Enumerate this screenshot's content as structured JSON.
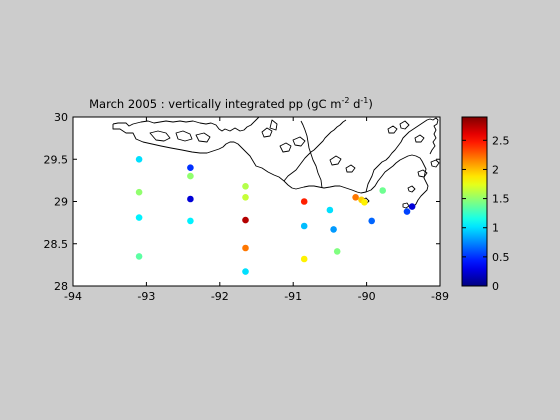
{
  "chart_data": {
    "type": "scatter",
    "title": "March 2005 : vertically integrated pp (gC m⁻² d⁻¹)",
    "title_parts": {
      "lead": "March 2005 : vertically integrated pp (gC m",
      "exp1": "-2",
      "mid": " d",
      "exp2": "-1",
      "tail": ")"
    },
    "xlabel": "",
    "ylabel": "",
    "xlim": [
      -94,
      -89
    ],
    "ylim": [
      28,
      30
    ],
    "xticks": [
      -94,
      -93,
      -92,
      -91,
      -90,
      -89
    ],
    "yticks": [
      28,
      28.5,
      29,
      29.5,
      30
    ],
    "xtick_labels": [
      "-94",
      "-93",
      "-92",
      "-91",
      "-90",
      "-89"
    ],
    "ytick_labels": [
      "28",
      "28.5",
      "29",
      "29.5",
      "30"
    ],
    "grid": false,
    "colormap": "jet",
    "colorbar": {
      "range": [
        0,
        2.9
      ],
      "ticks": [
        0,
        0.5,
        1,
        1.5,
        2,
        2.5
      ],
      "tick_labels": [
        "0",
        "0.5",
        "1",
        "1.5",
        "2",
        "2.5"
      ]
    },
    "points": [
      {
        "x": -93.1,
        "y": 29.5,
        "v": 1.0
      },
      {
        "x": -93.1,
        "y": 29.11,
        "v": 1.5
      },
      {
        "x": -93.1,
        "y": 28.81,
        "v": 1.05
      },
      {
        "x": -93.1,
        "y": 28.35,
        "v": 1.35
      },
      {
        "x": -92.4,
        "y": 29.4,
        "v": 0.5
      },
      {
        "x": -92.4,
        "y": 29.3,
        "v": 1.5
      },
      {
        "x": -92.4,
        "y": 29.03,
        "v": 0.25
      },
      {
        "x": -92.4,
        "y": 28.77,
        "v": 1.05
      },
      {
        "x": -91.65,
        "y": 29.18,
        "v": 1.6
      },
      {
        "x": -91.65,
        "y": 29.05,
        "v": 1.65
      },
      {
        "x": -91.65,
        "y": 28.78,
        "v": 2.75
      },
      {
        "x": -91.65,
        "y": 28.45,
        "v": 2.2
      },
      {
        "x": -91.65,
        "y": 28.17,
        "v": 1.0
      },
      {
        "x": -90.85,
        "y": 29.0,
        "v": 2.45
      },
      {
        "x": -90.85,
        "y": 28.71,
        "v": 0.9
      },
      {
        "x": -90.85,
        "y": 28.32,
        "v": 1.85
      },
      {
        "x": -90.5,
        "y": 28.9,
        "v": 1.0
      },
      {
        "x": -90.45,
        "y": 28.67,
        "v": 0.8
      },
      {
        "x": -90.4,
        "y": 28.41,
        "v": 1.45
      },
      {
        "x": -90.15,
        "y": 29.05,
        "v": 2.2
      },
      {
        "x": -90.07,
        "y": 29.02,
        "v": 1.95
      },
      {
        "x": -90.03,
        "y": 28.99,
        "v": 1.85
      },
      {
        "x": -89.93,
        "y": 28.77,
        "v": 0.65
      },
      {
        "x": -89.78,
        "y": 29.13,
        "v": 1.4
      },
      {
        "x": -89.45,
        "y": 28.88,
        "v": 0.55
      },
      {
        "x": -89.38,
        "y": 28.94,
        "v": 0.25
      }
    ]
  }
}
